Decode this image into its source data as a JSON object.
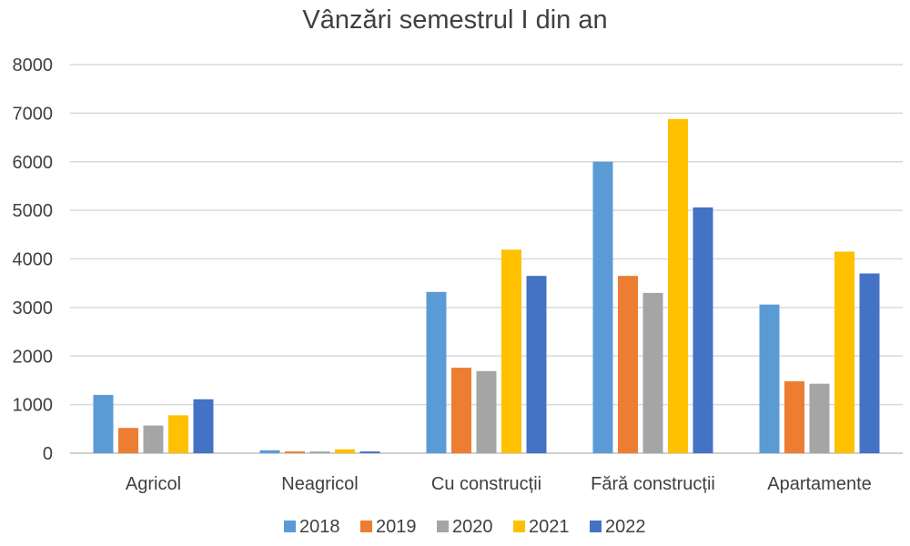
{
  "chart_data": {
    "type": "bar",
    "title": "Vânzări semestrul I din an",
    "categories": [
      "Agricol",
      "Neagricol",
      "Cu construcții",
      "Fără construcții",
      "Apartamente"
    ],
    "series": [
      {
        "name": "2018",
        "color": "#5b9bd5",
        "values": [
          1200,
          60,
          3320,
          6000,
          3060
        ]
      },
      {
        "name": "2019",
        "color": "#ed7d31",
        "values": [
          520,
          35,
          1760,
          3650,
          1480
        ]
      },
      {
        "name": "2020",
        "color": "#a5a5a5",
        "values": [
          570,
          35,
          1690,
          3300,
          1430
        ]
      },
      {
        "name": "2021",
        "color": "#ffc000",
        "values": [
          780,
          80,
          4190,
          6880,
          4150
        ]
      },
      {
        "name": "2022",
        "color": "#4472c4",
        "values": [
          1110,
          35,
          3650,
          5060,
          3700
        ]
      }
    ],
    "ylim": [
      0,
      8000
    ],
    "yticks": [
      0,
      1000,
      2000,
      3000,
      4000,
      5000,
      6000,
      7000,
      8000
    ],
    "grid": true,
    "legend": "bottom",
    "xlabel": "",
    "ylabel": ""
  }
}
